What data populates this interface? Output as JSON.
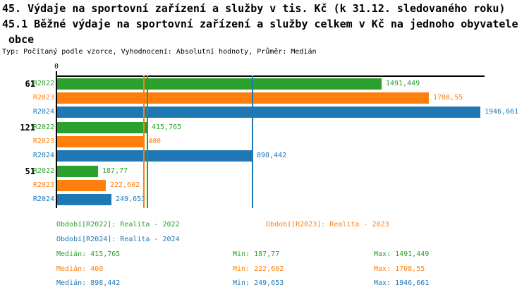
{
  "title": {
    "line1": "45. Výdaje na sportovní zařízení a služby v tis. Kč (k 31.12. sledovaného roku)",
    "line2": "45.1 Běžné výdaje na sportovní zařízení a služby celkem v Kč na jednoho obyvatele",
    "line3": " obce",
    "meta": "Typ: Počítaný podle vzorce, Vyhodnocení: Absolutní hodnoty, Průměr: Medián"
  },
  "colors": {
    "r2022": "#2ca02c",
    "r2023": "#ff7f0e",
    "r2024": "#1f77b4",
    "axis": "#000000"
  },
  "chart_data": {
    "type": "bar",
    "orientation": "horizontal",
    "x_origin_label": "0",
    "x_axis_max_value": 1946.661,
    "grid": false,
    "categories": [
      "61",
      "121",
      "51"
    ],
    "series_names": [
      "R2022",
      "R2023",
      "R2024"
    ],
    "groups": [
      {
        "label": "61",
        "bars": [
          {
            "series": "R2022",
            "value": 1491.449,
            "value_label": "1491,449"
          },
          {
            "series": "R2023",
            "value": 1708.55,
            "value_label": "1708,55"
          },
          {
            "series": "R2024",
            "value": 1946.661,
            "value_label": "1946,661"
          }
        ]
      },
      {
        "label": "121",
        "bars": [
          {
            "series": "R2022",
            "value": 415.765,
            "value_label": "415,765"
          },
          {
            "series": "R2023",
            "value": 400,
            "value_label": "400"
          },
          {
            "series": "R2024",
            "value": 898.442,
            "value_label": "898,442"
          }
        ]
      },
      {
        "label": "51",
        "bars": [
          {
            "series": "R2022",
            "value": 187.77,
            "value_label": "187,77"
          },
          {
            "series": "R2023",
            "value": 222.602,
            "value_label": "222,602"
          },
          {
            "series": "R2024",
            "value": 249.653,
            "value_label": "249,653"
          }
        ]
      }
    ],
    "median_lines": [
      {
        "series": "R2023",
        "value": 400
      },
      {
        "series": "R2022",
        "value": 415.765
      },
      {
        "series": "R2024",
        "value": 898.442
      }
    ]
  },
  "legend": {
    "period_r2022": "Období[R2022]: Realita - 2022",
    "period_r2023": "Období[R2023]: Realita - 2023",
    "period_r2024": "Období[R2024]: Realita - 2024",
    "stats": [
      {
        "median": "Medián: 415,765",
        "min": "Min: 187,77",
        "max": "Max: 1491,449"
      },
      {
        "median": "Medián: 400",
        "min": "Min: 222,602",
        "max": "Max: 1708,55"
      },
      {
        "median": "Medián: 898,442",
        "min": "Min: 249,653",
        "max": "Max: 1946,661"
      }
    ]
  }
}
